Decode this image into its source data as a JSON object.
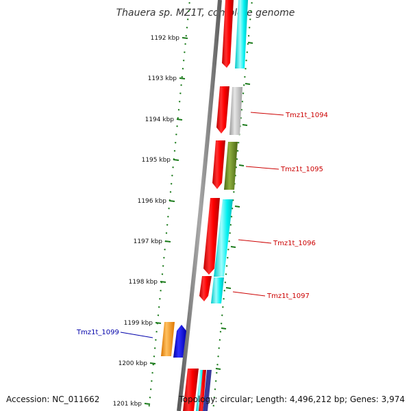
{
  "title": "Thauera sp. MZ1T, complete genome",
  "footer": {
    "accession": "Accession: NC_011662",
    "topology": "Topology: circular; Length: 4,496,212 bp; Genes: 3,974"
  },
  "ruler": {
    "unit": "kbp",
    "ticks": [
      "1192 kbp",
      "1193 kbp",
      "1194 kbp",
      "1195 kbp",
      "1196 kbp",
      "1197 kbp",
      "1198 kbp",
      "1199 kbp",
      "1200 kbp",
      "1201 kbp"
    ]
  },
  "gene_labels": [
    {
      "name": "Tmz1t_1094",
      "color": "#cc0000"
    },
    {
      "name": "Tmz1t_1095",
      "color": "#cc0000"
    },
    {
      "name": "Tmz1t_1096",
      "color": "#cc0000"
    },
    {
      "name": "Tmz1t_1097",
      "color": "#cc0000"
    },
    {
      "name": "Tmz1t_1099",
      "color": "#0000aa"
    }
  ],
  "colors": {
    "backbone": "#808080",
    "ticks": "#1a7a1a",
    "red": "#ff0000",
    "cyan": "#00e5e5",
    "gray": "#b8b8b8",
    "olive": "#6b8e23",
    "orange": "#ff9900",
    "blue": "#0000ff"
  }
}
